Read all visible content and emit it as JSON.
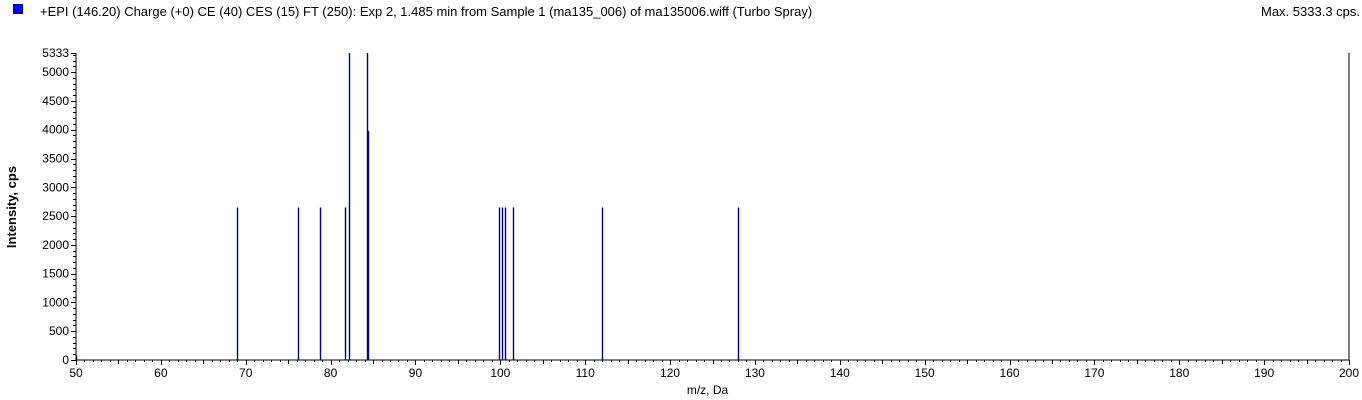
{
  "header": {
    "title": "+EPI (146.20) Charge (+0) CE (40) CES (15) FT (250): Exp 2, 1.485 min from Sample 1 (ma135_006) of ma135006.wiff (Turbo Spray)",
    "max_label": "Max. 5333.3 cps.",
    "swatch_color": "#0000ff"
  },
  "chart_data": {
    "type": "bar",
    "xlabel": "m/z, Da",
    "ylabel": "Intensity, cps",
    "xlim": [
      50,
      200
    ],
    "ylim": [
      0,
      5333
    ],
    "x_ticks": [
      50,
      60,
      70,
      80,
      90,
      100,
      110,
      120,
      130,
      140,
      150,
      160,
      170,
      180,
      190,
      200
    ],
    "y_ticks": [
      0,
      500,
      1000,
      1500,
      2000,
      2500,
      3000,
      3500,
      4000,
      4500,
      5000,
      5333
    ],
    "grid": false,
    "bar_color": "#00008b",
    "peaks": [
      {
        "x": 50.0,
        "y": 80
      },
      {
        "x": 69.0,
        "y": 2650
      },
      {
        "x": 76.2,
        "y": 2650
      },
      {
        "x": 78.8,
        "y": 2650
      },
      {
        "x": 81.7,
        "y": 2650
      },
      {
        "x": 82.2,
        "y": 5333
      },
      {
        "x": 84.3,
        "y": 5333
      },
      {
        "x": 84.4,
        "y": 3980
      },
      {
        "x": 99.9,
        "y": 2650
      },
      {
        "x": 100.2,
        "y": 2650
      },
      {
        "x": 100.5,
        "y": 2650
      },
      {
        "x": 101.5,
        "y": 2650
      },
      {
        "x": 112.0,
        "y": 2650
      },
      {
        "x": 128.0,
        "y": 2650
      }
    ]
  }
}
